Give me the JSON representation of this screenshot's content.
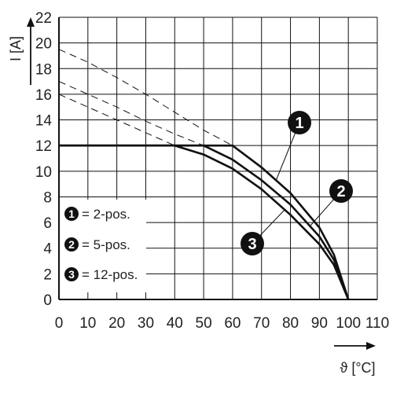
{
  "chart_data": {
    "type": "line",
    "xlabel": "ϑ [°C]",
    "ylabel": "I [A]",
    "xlim": [
      0,
      110
    ],
    "ylim": [
      0,
      22
    ],
    "x_ticks": [
      "0",
      "10",
      "20",
      "30",
      "40",
      "50",
      "60",
      "70",
      "80",
      "90",
      "100",
      "110"
    ],
    "y_ticks": [
      "0",
      "2",
      "4",
      "6",
      "8",
      "10",
      "12",
      "14",
      "16",
      "18",
      "20",
      "22"
    ],
    "grid": true,
    "legend": [
      {
        "badge": "1",
        "label": "= 2-pos."
      },
      {
        "badge": "2",
        "label": "= 5-pos."
      },
      {
        "badge": "3",
        "label": "= 12-pos."
      }
    ],
    "legend_position": "bottom-left",
    "series": [
      {
        "badge": "1",
        "style": "solid",
        "x": [
          0,
          60,
          70,
          80,
          90,
          95,
          100
        ],
        "y": [
          12,
          12,
          10.3,
          8.3,
          5.6,
          3.5,
          0
        ]
      },
      {
        "badge": "2",
        "style": "solid",
        "x": [
          0,
          50,
          60,
          70,
          80,
          90,
          95,
          100
        ],
        "y": [
          12,
          12,
          10.9,
          9.3,
          7.4,
          4.9,
          3.1,
          0
        ]
      },
      {
        "badge": "3",
        "style": "solid",
        "x": [
          0,
          40,
          50,
          60,
          70,
          80,
          90,
          95,
          100
        ],
        "y": [
          12,
          12,
          11.3,
          10.2,
          8.6,
          6.6,
          4.3,
          2.7,
          0
        ]
      },
      {
        "badge": "1",
        "style": "dashed",
        "x": [
          0,
          10,
          20,
          30,
          40,
          50,
          60
        ],
        "y": [
          19.5,
          18.5,
          17.3,
          16.0,
          14.6,
          13.2,
          12
        ]
      },
      {
        "badge": "2",
        "style": "dashed",
        "x": [
          0,
          10,
          20,
          30,
          40,
          50
        ],
        "y": [
          17.0,
          16.0,
          15.0,
          13.9,
          12.9,
          12
        ]
      },
      {
        "badge": "3",
        "style": "dashed",
        "x": [
          0,
          10,
          20,
          30,
          40
        ],
        "y": [
          16.0,
          15.0,
          14.0,
          13.0,
          12
        ]
      }
    ]
  }
}
